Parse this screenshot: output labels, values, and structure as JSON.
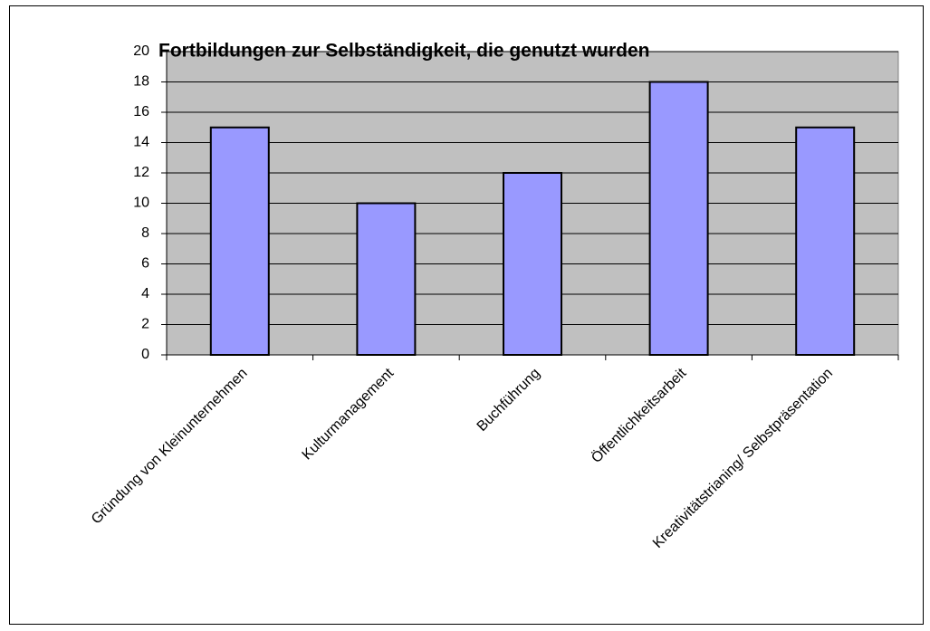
{
  "chart_data": {
    "type": "bar",
    "title": "Fortbildungen zur Selbständigkeit, die genutzt wurden",
    "categories": [
      "Gründung von Kleinunternehmen",
      "Kulturmanagement",
      "Buchführung",
      "Öffentlichkeitsarbeit",
      "Kreativitätstrianing/ Selbstpräsentation"
    ],
    "values": [
      15,
      10,
      12,
      18,
      15
    ],
    "color": "#9999ff",
    "ylim": [
      0,
      20
    ],
    "yticks": [
      0,
      2,
      4,
      6,
      8,
      10,
      12,
      14,
      16,
      18,
      20
    ],
    "grid": true
  }
}
